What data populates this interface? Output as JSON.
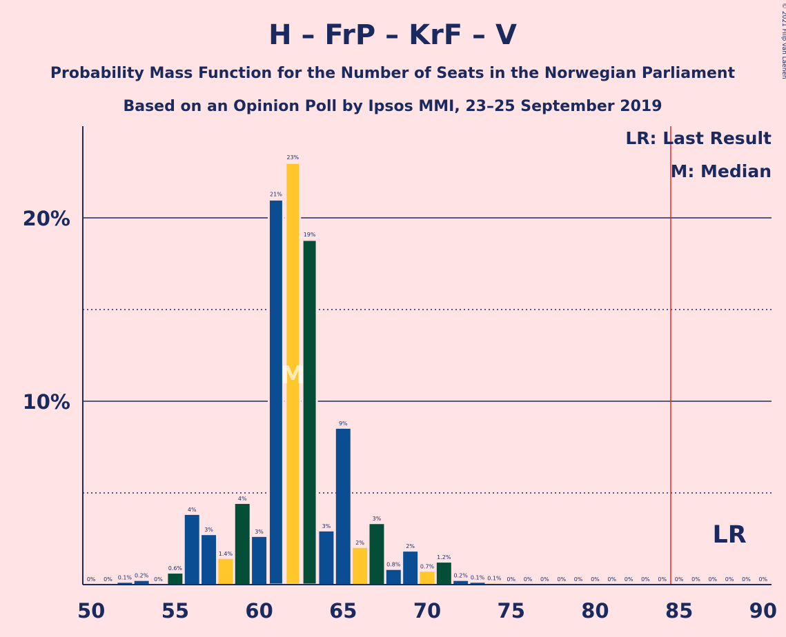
{
  "chart_data": {
    "type": "bar",
    "title": "H – FrP – KrF – V",
    "subtitle": "Probability Mass Function for the Number of Seats in the Norwegian Parliament",
    "subtitle2": "Based on an Opinion Poll by Ipsos MMI, 23–25 September 2019",
    "copyright": "© 2021 Filip van Laenen",
    "x": [
      50,
      51,
      52,
      53,
      54,
      55,
      56,
      57,
      58,
      59,
      60,
      61,
      62,
      63,
      64,
      65,
      66,
      67,
      68,
      69,
      70,
      71,
      72,
      73,
      74,
      75,
      76,
      77,
      78,
      79,
      80,
      81,
      82,
      83,
      84,
      85,
      86,
      87,
      88,
      89,
      90
    ],
    "values": [
      0,
      0,
      0.1,
      0.2,
      0,
      0.6,
      3.8,
      2.7,
      1.4,
      4.4,
      2.6,
      21.0,
      23.0,
      18.8,
      2.9,
      8.5,
      2.0,
      3.3,
      0.8,
      1.8,
      0.7,
      1.2,
      0.2,
      0.1,
      0.05,
      0,
      0,
      0,
      0,
      0,
      0,
      0,
      0,
      0,
      0,
      0,
      0,
      0,
      0,
      0,
      0
    ],
    "labels": [
      "0%",
      "0%",
      "0.1%",
      "0.2%",
      "0%",
      "0.6%",
      "4%",
      "3%",
      "1.4%",
      "4%",
      "3%",
      "21%",
      "23%",
      "19%",
      "3%",
      "9%",
      "2%",
      "3%",
      "0.8%",
      "2%",
      "0.7%",
      "1.2%",
      "0.2%",
      "0.1%",
      "0.1%",
      "0%",
      "0%",
      "0%",
      "0%",
      "0%",
      "0%",
      "0%",
      "0%",
      "0%",
      "0%",
      "0%",
      "0%",
      "0%",
      "0%",
      "0%",
      "0%"
    ],
    "bar_colors": [
      "#0A4D92",
      "#FFC72C",
      "#0A4D92",
      "#0A4D92",
      "#FFC72C",
      "#044D37",
      "#0A4D92",
      "#0A4D92",
      "#FFC72C",
      "#044D37",
      "#0A4D92",
      "#0A4D92",
      "#FFC72C",
      "#044D37",
      "#0A4D92",
      "#0A4D92",
      "#FFC72C",
      "#044D37",
      "#0A4D92",
      "#0A4D92",
      "#FFC72C",
      "#044D37",
      "#0A4D92",
      "#0A4D92",
      "#FFC72C",
      "#044D37",
      "#0A4D92",
      "#0A4D92",
      "#FFC72C",
      "#044D37",
      "#0A4D92",
      "#0A4D92",
      "#FFC72C",
      "#044D37",
      "#0A4D92",
      "#0A4D92",
      "#FFC72C",
      "#044D37",
      "#0A4D92",
      "#0A4D92",
      "#FFC72C"
    ],
    "xlim": [
      49.5,
      90.5
    ],
    "ylim": [
      0,
      25
    ],
    "x_ticks": [
      50,
      55,
      60,
      65,
      70,
      75,
      80,
      85,
      90
    ],
    "y_ticks_major": [
      10,
      20
    ],
    "y_tick_labels": [
      "10%",
      "20%"
    ],
    "y_ticks_minor": [
      5,
      15
    ],
    "median": {
      "x": 62,
      "label": "M"
    },
    "last_result": {
      "x": 84.5,
      "label": "LR",
      "color": "#E32A2A"
    },
    "legend": [
      "LR: Last Result",
      "M: Median"
    ],
    "legend_position": "top-right",
    "colors": {
      "background": "#FFE3E5",
      "text": "#1A2A5E"
    }
  }
}
